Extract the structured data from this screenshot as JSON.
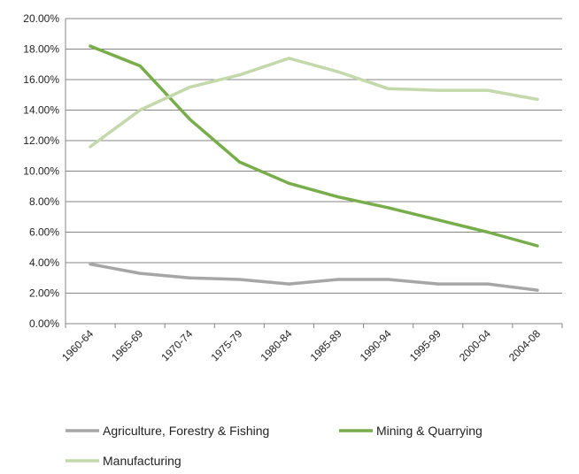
{
  "chart_data": {
    "type": "line",
    "title": "",
    "xlabel": "",
    "ylabel": "",
    "categories": [
      "1960-64",
      "1965-69",
      "1970-74",
      "1975-79",
      "1980-84",
      "1985-89",
      "1990-94",
      "1995-99",
      "2000-04",
      "2004-08"
    ],
    "ylim": [
      0,
      20
    ],
    "yticks": [
      "0.00%",
      "2.00%",
      "4.00%",
      "6.00%",
      "8.00%",
      "10.00%",
      "12.00%",
      "14.00%",
      "16.00%",
      "18.00%",
      "20.00%"
    ],
    "grid": true,
    "legend_position": "bottom",
    "series": [
      {
        "name": "Agriculture, Forestry & Fishing",
        "color": "#a6a6a6",
        "values": [
          3.9,
          3.3,
          3.0,
          2.9,
          2.6,
          2.9,
          2.9,
          2.6,
          2.6,
          2.2
        ]
      },
      {
        "name": "Mining & Quarrying",
        "color": "#77ad4a",
        "values": [
          18.2,
          16.9,
          13.4,
          10.6,
          9.2,
          8.3,
          7.6,
          6.8,
          6.0,
          5.1
        ]
      },
      {
        "name": "Manufacturing",
        "color": "#c3d9ab",
        "values": [
          11.6,
          14.0,
          15.5,
          16.3,
          17.4,
          16.5,
          15.4,
          15.3,
          15.3,
          14.7
        ]
      }
    ]
  }
}
